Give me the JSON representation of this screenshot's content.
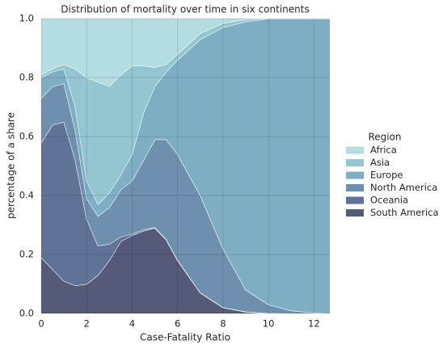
{
  "chart_data": {
    "type": "stacked-area",
    "title": "Distribution of mortality over time in six continents",
    "x_label": "Case-Fatality Ratio",
    "y_label": "percentage of a share",
    "legend_title": "Region",
    "legend_position": "right",
    "grid": true,
    "x": [
      0,
      0.5,
      1,
      1.5,
      2,
      2.5,
      3,
      3.5,
      4,
      4.5,
      5,
      5.5,
      6,
      7,
      8,
      9,
      10,
      11,
      12,
      12.7
    ],
    "series": [
      {
        "name": "Africa",
        "color": "#b3dde0",
        "values": [
          0.19,
          0.17,
          0.155,
          0.17,
          0.2,
          0.215,
          0.23,
          0.19,
          0.16,
          0.16,
          0.165,
          0.155,
          0.12,
          0.05,
          0.015,
          0.002,
          0,
          0,
          0,
          0
        ]
      },
      {
        "name": "Asia",
        "color": "#93c6d0",
        "values": [
          0.01,
          0.01,
          0.015,
          0.13,
          0.35,
          0.415,
          0.36,
          0.34,
          0.3,
          0.16,
          0.065,
          0.025,
          0.02,
          0.02,
          0.015,
          0.008,
          0,
          0,
          0,
          0
        ]
      },
      {
        "name": "Europe",
        "color": "#7eaec4",
        "values": [
          0.07,
          0.05,
          0.05,
          0.08,
          0.06,
          0.04,
          0.05,
          0.05,
          0.09,
          0.16,
          0.18,
          0.23,
          0.32,
          0.53,
          0.75,
          0.91,
          0.97,
          0.99,
          0.998,
          1
        ]
      },
      {
        "name": "North America",
        "color": "#6e8fae",
        "values": [
          0.15,
          0.13,
          0.13,
          0.1,
          0.07,
          0.1,
          0.125,
          0.16,
          0.18,
          0.235,
          0.298,
          0.338,
          0.358,
          0.329,
          0.199,
          0.074,
          0.029,
          0.01,
          0.002,
          0
        ]
      },
      {
        "name": "Oceania",
        "color": "#5f7396",
        "values": [
          0.39,
          0.49,
          0.54,
          0.425,
          0.22,
          0.1,
          0.055,
          0.015,
          0.005,
          0.005,
          0.002,
          0.002,
          0.002,
          0.001,
          0.001,
          0.001,
          0.001,
          0,
          0,
          0
        ]
      },
      {
        "name": "South America",
        "color": "#545a78",
        "values": [
          0.19,
          0.15,
          0.11,
          0.095,
          0.1,
          0.13,
          0.18,
          0.245,
          0.265,
          0.28,
          0.29,
          0.25,
          0.18,
          0.07,
          0.02,
          0.005,
          0,
          0,
          0,
          0
        ]
      }
    ],
    "xlim": [
      0,
      12.7
    ],
    "ylim": [
      0,
      1
    ],
    "xticks": [
      0,
      2,
      4,
      6,
      8,
      10,
      12
    ],
    "yticks": [
      {
        "value": 0,
        "label": "0.0"
      },
      0.2,
      0.4,
      0.6,
      0.8,
      {
        "value": 1,
        "label": "1.0"
      }
    ]
  }
}
